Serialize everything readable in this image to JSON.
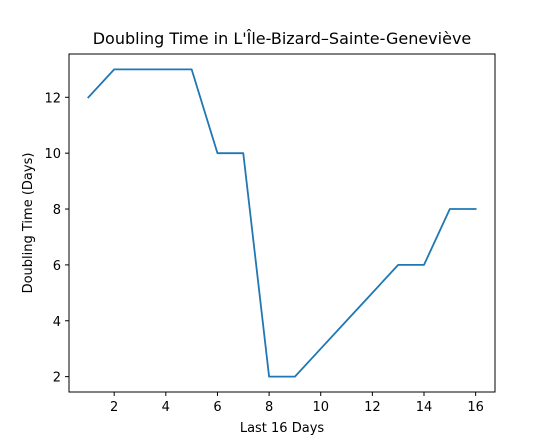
{
  "chart_data": {
    "type": "line",
    "title": "Doubling Time in  L'Île-Bizard–Sainte-Geneviève",
    "xlabel": "Last 16 Days",
    "ylabel": "Doubling Time (Days)",
    "x": [
      1,
      2,
      3,
      4,
      5,
      6,
      7,
      8,
      9,
      10,
      11,
      12,
      13,
      14,
      15,
      16
    ],
    "series": [
      {
        "name": "Doubling Time",
        "color": "#1f77b4",
        "values": [
          12,
          13,
          13,
          13,
          13,
          10,
          10,
          2,
          2,
          3,
          4,
          5,
          6,
          6,
          8,
          8
        ]
      }
    ],
    "xlim": [
      0.25,
      16.75
    ],
    "ylim": [
      1.45,
      13.55
    ],
    "xticks": [
      2,
      4,
      6,
      8,
      10,
      12,
      14,
      16
    ],
    "yticks": [
      2,
      4,
      6,
      8,
      10,
      12
    ],
    "grid": false
  }
}
